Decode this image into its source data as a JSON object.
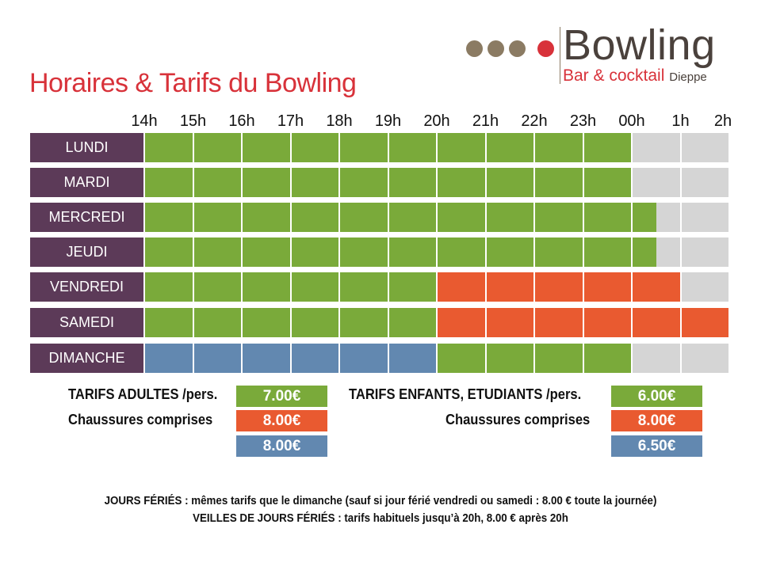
{
  "title": "Horaires & Tarifs du Bowling",
  "logo": {
    "brand": "Bowling",
    "subtitle": "Bar & cocktail",
    "city": "Dieppe"
  },
  "colors": {
    "green": "#7aaa3a",
    "red": "#e95a30",
    "blue": "#6288b0",
    "grey": "#d5d5d5",
    "day": "#5c3a58"
  },
  "hours": [
    "14h",
    "15h",
    "16h",
    "17h",
    "18h",
    "19h",
    "20h",
    "21h",
    "22h",
    "23h",
    "00h",
    "1h",
    "2h"
  ],
  "schedule": [
    {
      "day": "LUNDI",
      "segments": [
        [
          "green",
          0,
          10
        ],
        [
          "grey",
          10,
          12
        ]
      ]
    },
    {
      "day": "MARDI",
      "segments": [
        [
          "green",
          0,
          10
        ],
        [
          "grey",
          10,
          12
        ]
      ]
    },
    {
      "day": "MERCREDI",
      "segments": [
        [
          "green",
          0,
          10.5
        ],
        [
          "grey",
          10.5,
          12
        ]
      ]
    },
    {
      "day": "JEUDI",
      "segments": [
        [
          "green",
          0,
          10.5
        ],
        [
          "grey",
          10.5,
          12
        ]
      ]
    },
    {
      "day": "VENDREDI",
      "segments": [
        [
          "green",
          0,
          6
        ],
        [
          "red",
          6,
          11
        ],
        [
          "grey",
          11,
          12
        ]
      ]
    },
    {
      "day": "SAMEDI",
      "segments": [
        [
          "green",
          0,
          6
        ],
        [
          "red",
          6,
          12
        ]
      ]
    },
    {
      "day": "DIMANCHE",
      "segments": [
        [
          "blue",
          0,
          6
        ],
        [
          "green",
          6,
          10
        ],
        [
          "grey",
          10,
          12
        ]
      ]
    }
  ],
  "tarifs": {
    "adultes_label": "TARIFS ADULTES /pers.",
    "adultes_sub": "Chaussures comprises",
    "adultes": [
      "7.00€",
      "8.00€",
      "8.00€"
    ],
    "enfants_label": "TARIFS ENFANTS, ETUDIANTS /pers.",
    "enfants_sub": "Chaussures comprises",
    "enfants": [
      "6.00€",
      "8.00€",
      "6.50€"
    ]
  },
  "notes": [
    "JOURS FÉRIÉS : mêmes tarifs que le dimanche (sauf si jour férié vendredi ou samedi : 8.00 € toute la journée)",
    "VEILLES DE JOURS FÉRIÉS : tarifs habituels jusqu’à 20h, 8.00 € après 20h"
  ]
}
